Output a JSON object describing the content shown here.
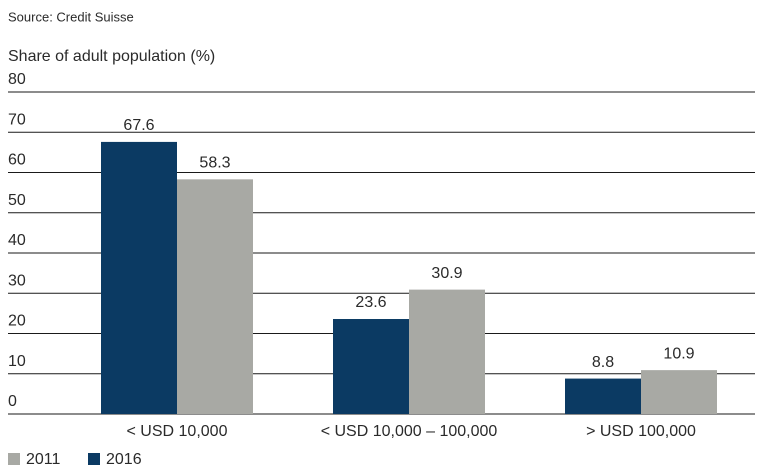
{
  "chart_data": {
    "type": "bar",
    "source": "Source: Credit Suisse",
    "ylabel": "Share of adult population (%)",
    "categories": [
      "< USD 10,000",
      "< USD 10,000 – 100,000",
      "> USD 100,000"
    ],
    "series": [
      {
        "name": "2016",
        "color": "#0b3a63",
        "values": [
          67.6,
          23.6,
          8.8
        ]
      },
      {
        "name": "2011",
        "color": "#a8a9a4",
        "values": [
          58.3,
          30.9,
          10.9
        ]
      }
    ],
    "ylim": [
      0,
      80
    ],
    "yticks": [
      0,
      10,
      20,
      30,
      40,
      50,
      60,
      70,
      80
    ],
    "grid": true
  }
}
